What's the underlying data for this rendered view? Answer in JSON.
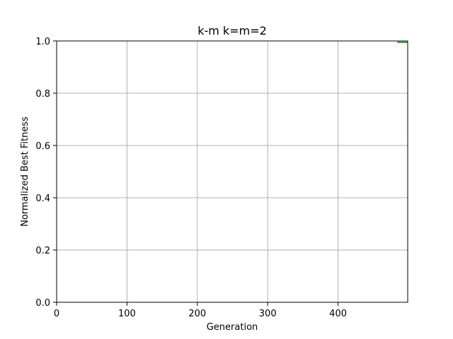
{
  "chart_data": {
    "type": "line",
    "title": "k-m k=m=2",
    "xlabel": "Generation",
    "ylabel": "Normalized Best Fitness",
    "xlim": [
      0,
      499
    ],
    "ylim": [
      0.0,
      1.0
    ],
    "xticks": [
      "0",
      "100",
      "200",
      "300",
      "400"
    ],
    "yticks": [
      "0.0",
      "0.2",
      "0.4",
      "0.6",
      "0.8",
      "1.0"
    ],
    "grid": true,
    "series": [
      {
        "color": "#2ca02c",
        "x": [
          484,
          499
        ],
        "y": [
          0.995,
          0.995
        ]
      }
    ]
  }
}
